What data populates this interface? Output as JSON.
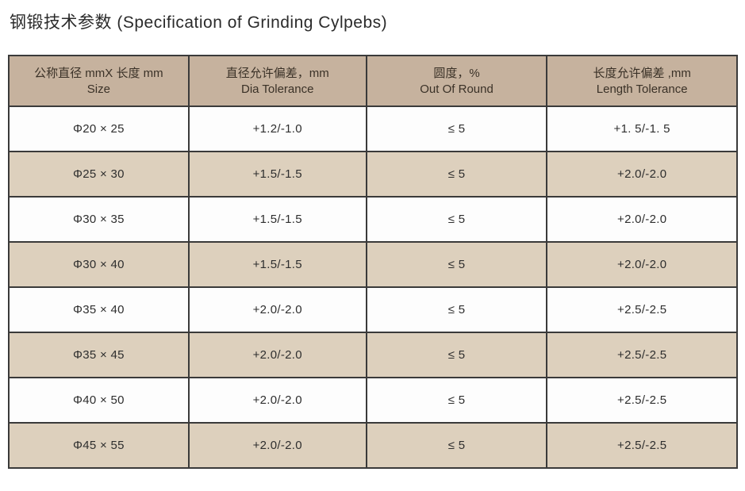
{
  "page_title": "钢锻技术参数 (Specification of Grinding Cylpebs)",
  "colors": {
    "header_background": "#c6b29e",
    "row_tan_background": "#ddd0bd",
    "row_white_background": "#fdfdfd",
    "border": "#3a3a3a",
    "text": "#2e2e2e"
  },
  "table": {
    "columns": [
      {
        "zh": "公称直径 mmX 长度 mm",
        "en": "Size"
      },
      {
        "zh": "直径允许偏差，mm",
        "en": "Dia Tolerance"
      },
      {
        "zh": "圆度，%",
        "en": "Out Of Round"
      },
      {
        "zh": "长度允许偏差 ,mm",
        "en": "Length Tolerance"
      }
    ],
    "rows": [
      [
        "Φ20 × 25",
        "+1.2/-1.0",
        "≤ 5",
        "+1. 5/-1. 5"
      ],
      [
        "Φ25 × 30",
        "+1.5/-1.5",
        "≤ 5",
        "+2.0/-2.0"
      ],
      [
        "Φ30 × 35",
        "+1.5/-1.5",
        "≤ 5",
        "+2.0/-2.0"
      ],
      [
        "Φ30 × 40",
        "+1.5/-1.5",
        "≤ 5",
        "+2.0/-2.0"
      ],
      [
        "Φ35 × 40",
        "+2.0/-2.0",
        "≤ 5",
        "+2.5/-2.5"
      ],
      [
        "Φ35 × 45",
        "+2.0/-2.0",
        "≤ 5",
        "+2.5/-2.5"
      ],
      [
        "Φ40 × 50",
        "+2.0/-2.0",
        "≤ 5",
        "+2.5/-2.5"
      ],
      [
        "Φ45 × 55",
        "+2.0/-2.0",
        "≤ 5",
        "+2.5/-2.5"
      ]
    ]
  }
}
